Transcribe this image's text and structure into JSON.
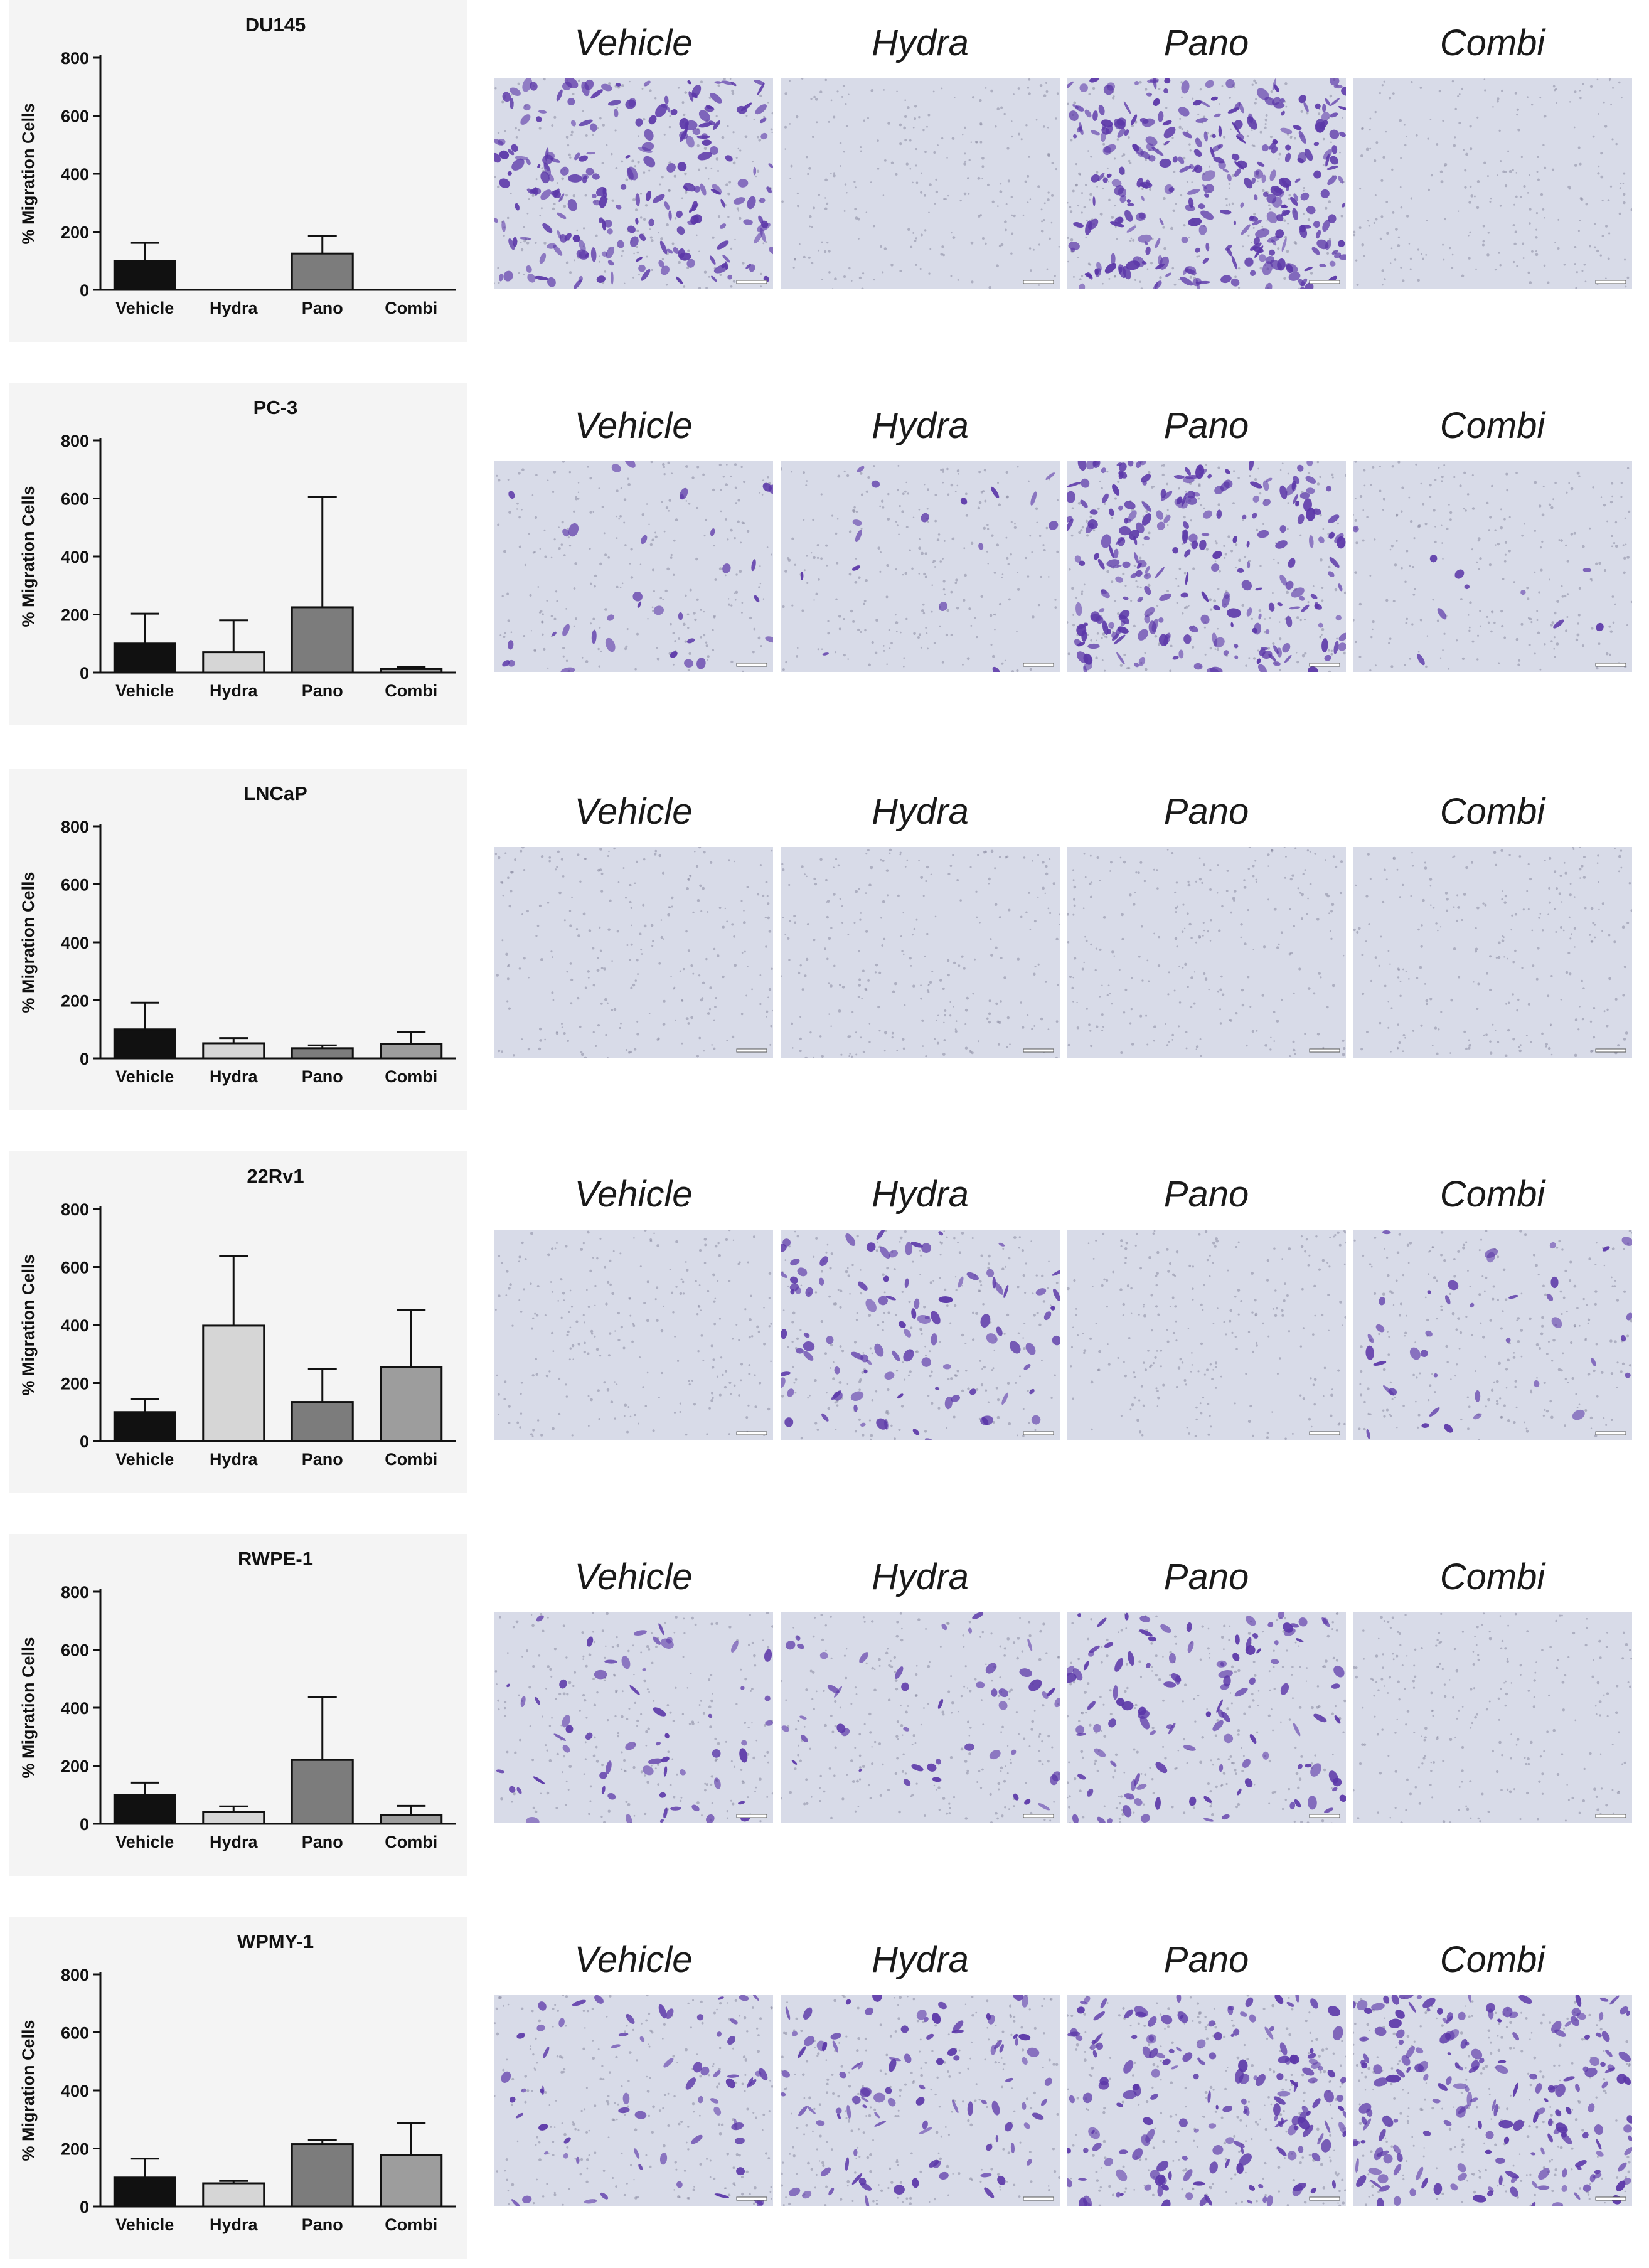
{
  "colors": {
    "Vehicle": "#111111",
    "Hydra": "#d6d6d6",
    "Pano": "#7c7c7c",
    "Combi": "#9d9d9d",
    "stain": "#5b37a8",
    "field": "#d8dbe8",
    "panel_bg": "#f4f4f4"
  },
  "image_treatments": [
    "Vehicle",
    "Hydra",
    "Pano",
    "Combi"
  ],
  "chart_data": [
    {
      "type": "bar",
      "title": "DU145",
      "ylabel": "% Migration Cells",
      "xlabel": "",
      "categories": [
        "Vehicle",
        "Hydra",
        "Pano",
        "Combi"
      ],
      "values": [
        100,
        0,
        125,
        0
      ],
      "errors": [
        62,
        0,
        62,
        0
      ],
      "ylim": [
        0,
        800
      ],
      "yticks": [
        0,
        200,
        400,
        600,
        800
      ],
      "image_stain_density": [
        0.7,
        0,
        0.95,
        0
      ]
    },
    {
      "type": "bar",
      "title": "PC-3",
      "ylabel": "% Migration Cells",
      "xlabel": "",
      "categories": [
        "Vehicle",
        "Hydra",
        "Pano",
        "Combi"
      ],
      "values": [
        100,
        70,
        225,
        12
      ],
      "errors": [
        103,
        110,
        380,
        8
      ],
      "ylim": [
        0,
        800
      ],
      "yticks": [
        0,
        200,
        400,
        600,
        800
      ],
      "image_stain_density": [
        0.1,
        0.05,
        0.75,
        0.03
      ]
    },
    {
      "type": "bar",
      "title": "LNCaP",
      "ylabel": "% Migration Cells",
      "xlabel": "",
      "categories": [
        "Vehicle",
        "Hydra",
        "Pano",
        "Combi"
      ],
      "values": [
        100,
        52,
        35,
        50
      ],
      "errors": [
        92,
        18,
        10,
        40
      ],
      "ylim": [
        0,
        800
      ],
      "yticks": [
        0,
        200,
        400,
        600,
        800
      ],
      "image_stain_density": [
        0,
        0,
        0,
        0
      ]
    },
    {
      "type": "bar",
      "title": "22Rv1",
      "ylabel": "% Migration Cells",
      "xlabel": "",
      "categories": [
        "Vehicle",
        "Hydra",
        "Pano",
        "Combi"
      ],
      "values": [
        100,
        398,
        135,
        255
      ],
      "errors": [
        45,
        240,
        113,
        197
      ],
      "ylim": [
        0,
        800
      ],
      "yticks": [
        0,
        200,
        400,
        600,
        800
      ],
      "image_stain_density": [
        0,
        0.3,
        0,
        0.12
      ]
    },
    {
      "type": "bar",
      "title": "RWPE-1",
      "ylabel": "% Migration Cells",
      "xlabel": "",
      "categories": [
        "Vehicle",
        "Hydra",
        "Pano",
        "Combi"
      ],
      "values": [
        100,
        42,
        220,
        30
      ],
      "errors": [
        42,
        18,
        217,
        32
      ],
      "ylim": [
        0,
        800
      ],
      "yticks": [
        0,
        200,
        400,
        600,
        800
      ],
      "image_stain_density": [
        0.18,
        0.14,
        0.35,
        0
      ]
    },
    {
      "type": "bar",
      "title": "WPMY-1",
      "ylabel": "% Migration Cells",
      "xlabel": "",
      "categories": [
        "Vehicle",
        "Hydra",
        "Pano",
        "Combi"
      ],
      "values": [
        100,
        80,
        215,
        178
      ],
      "errors": [
        65,
        8,
        15,
        110
      ],
      "ylim": [
        0,
        800
      ],
      "yticks": [
        0,
        200,
        400,
        600,
        800
      ],
      "image_stain_density": [
        0.2,
        0.3,
        0.55,
        0.6
      ]
    }
  ]
}
